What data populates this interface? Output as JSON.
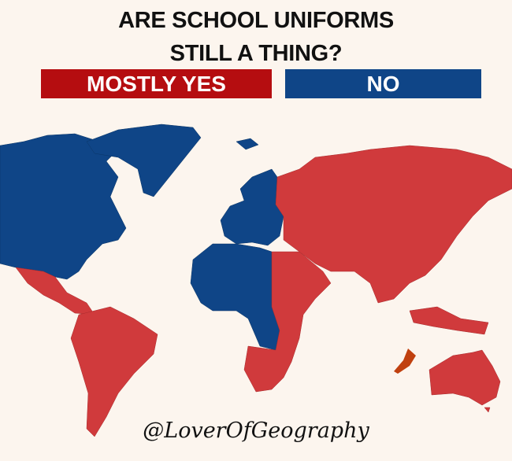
{
  "title": {
    "line1": "ARE SCHOOL UNIFORMS",
    "line2": "STILL A THING?"
  },
  "legend": [
    {
      "label": "MOSTLY YES",
      "color": "#b50d10"
    },
    {
      "label": "NO",
      "color": "#0f4587"
    }
  ],
  "map_colors": {
    "mostly_yes": "#d03a3c",
    "no": "#0f4587",
    "highlight": "#c0400f",
    "background": "#fcf5ee"
  },
  "credit": "@LoverOfGeography"
}
